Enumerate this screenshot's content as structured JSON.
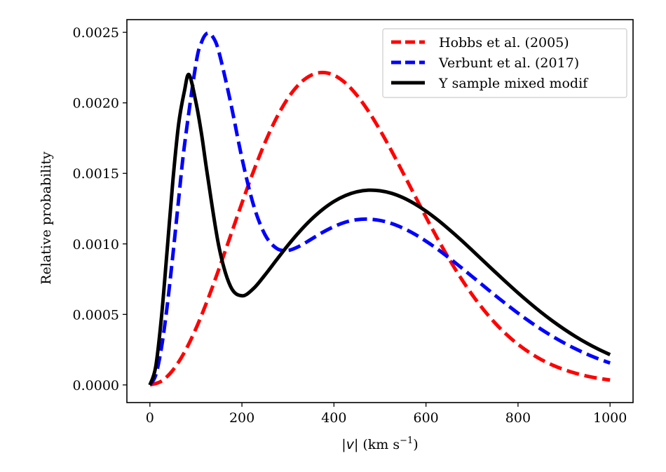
{
  "chart_data": {
    "type": "line",
    "title": "",
    "xlabel_parts": {
      "pre": "|",
      "var": "v",
      "mid": "| (km s",
      "sup": "−1",
      "post": ")"
    },
    "xlabel": "|v| (km s^-1)",
    "ylabel": "Relative probability",
    "xlim": [
      -50,
      1050
    ],
    "ylim": [
      -0.000125,
      0.00259
    ],
    "xticks": [
      0,
      200,
      400,
      600,
      800,
      1000
    ],
    "xtick_labels": [
      "0",
      "200",
      "400",
      "600",
      "800",
      "1000"
    ],
    "yticks": [
      0.0,
      0.0005,
      0.001,
      0.0015,
      0.002,
      0.0025
    ],
    "ytick_labels": [
      "0.0000",
      "0.0005",
      "0.0010",
      "0.0015",
      "0.0020",
      "0.0025"
    ],
    "grid": false,
    "legend_position": "top-right",
    "series": [
      {
        "name": "Hobbs et al. (2005)",
        "color": "#ff0000",
        "style": "dashed",
        "x": [
          0,
          25,
          50,
          75,
          100,
          125,
          150,
          175,
          200,
          225,
          250,
          275,
          300,
          325,
          350,
          375,
          400,
          425,
          450,
          475,
          500,
          525,
          550,
          575,
          600,
          625,
          650,
          675,
          700,
          725,
          750,
          775,
          800,
          825,
          850,
          875,
          900,
          925,
          950,
          975,
          1000
        ],
        "y": [
          0,
          2.67e-05,
          0.0001053,
          0.0002317,
          0.0003993,
          0.0005994,
          0.0008219,
          0.0010558,
          0.00129,
          0.0015136,
          0.0017172,
          0.0018926,
          0.0020331,
          0.0021348,
          0.0021954,
          0.0022152,
          0.0021959,
          0.0021405,
          0.0020533,
          0.0019405,
          0.0018072,
          0.0016603,
          0.0015045,
          0.0013467,
          0.00119,
          0.0010384,
          0.0008949,
          0.0007619,
          0.0006414,
          0.0005341,
          0.0004394,
          0.0003577,
          0.0002878,
          0.0002294,
          0.0001806,
          0.0001408,
          0.0001087,
          8.29e-05,
          6.26e-05,
          4.68e-05,
          3.47e-05
        ]
      },
      {
        "name": "Verbunt et al. (2017)",
        "color": "#0000ff",
        "style": "dashed",
        "x": [
          0,
          12.5,
          25,
          37.5,
          50,
          62.5,
          75,
          100,
          112.5,
          125,
          137.5,
          150,
          175,
          200,
          225,
          250,
          275,
          300,
          325,
          350,
          375,
          400,
          425,
          450,
          475,
          500,
          525,
          550,
          575,
          600,
          625,
          650,
          675,
          700,
          725,
          750,
          775,
          800,
          825,
          850,
          875,
          900,
          925,
          950,
          975,
          1000
        ],
        "y": [
          0,
          6.8e-05,
          0.000261,
          0.000558,
          0.000923,
          0.001317,
          0.0016956,
          0.002276,
          0.002432,
          0.002494,
          0.002464,
          0.0023605,
          0.0020093,
          0.0016082,
          0.0012773,
          0.0010664,
          0.0009693,
          0.0009537,
          0.0009837,
          0.001032,
          0.001081,
          0.0011226,
          0.0011541,
          0.0011718,
          0.0011754,
          0.0011661,
          0.0011446,
          0.0011118,
          0.00107,
          0.0010194,
          0.0009628,
          0.0009011,
          0.0008363,
          0.0007694,
          0.0007027,
          0.0006358,
          0.0005714,
          0.0005089,
          0.0004502,
          0.0003952,
          0.0003443,
          0.0002979,
          0.0002558,
          0.0002181,
          0.0001847,
          0.0001553
        ]
      },
      {
        "name": "Y sample mixed modif",
        "color": "#000000",
        "style": "solid",
        "x": [
          0,
          12.5,
          25,
          37.5,
          50,
          62.5,
          75,
          85,
          100,
          112.5,
          125,
          150,
          175,
          200,
          225,
          250,
          275,
          300,
          325,
          350,
          375,
          400,
          425,
          450,
          475,
          500,
          525,
          550,
          575,
          600,
          625,
          650,
          675,
          700,
          725,
          750,
          775,
          800,
          825,
          850,
          875,
          900,
          925,
          950,
          975,
          1000
        ],
        "y": [
          0,
          0.000127,
          0.000476,
          0.000956,
          0.00145,
          0.001851,
          0.002083,
          0.0022,
          0.0020055,
          0.001773,
          0.00149,
          0.0009809,
          0.0007,
          0.000632,
          0.0006829,
          0.0007794,
          0.0008855,
          0.0009904,
          0.0010863,
          0.0011712,
          0.0012431,
          0.0013008,
          0.0013429,
          0.0013697,
          0.001381,
          0.0013768,
          0.001359,
          0.0013279,
          0.0012849,
          0.0012324,
          0.0011711,
          0.0011033,
          0.0010315,
          0.0009557,
          0.0008784,
          0.0008018,
          0.0007263,
          0.0006525,
          0.0005823,
          0.0005156,
          0.0004533,
          0.0003959,
          0.0003432,
          0.0002956,
          0.0002529,
          0.0002147
        ]
      }
    ]
  }
}
